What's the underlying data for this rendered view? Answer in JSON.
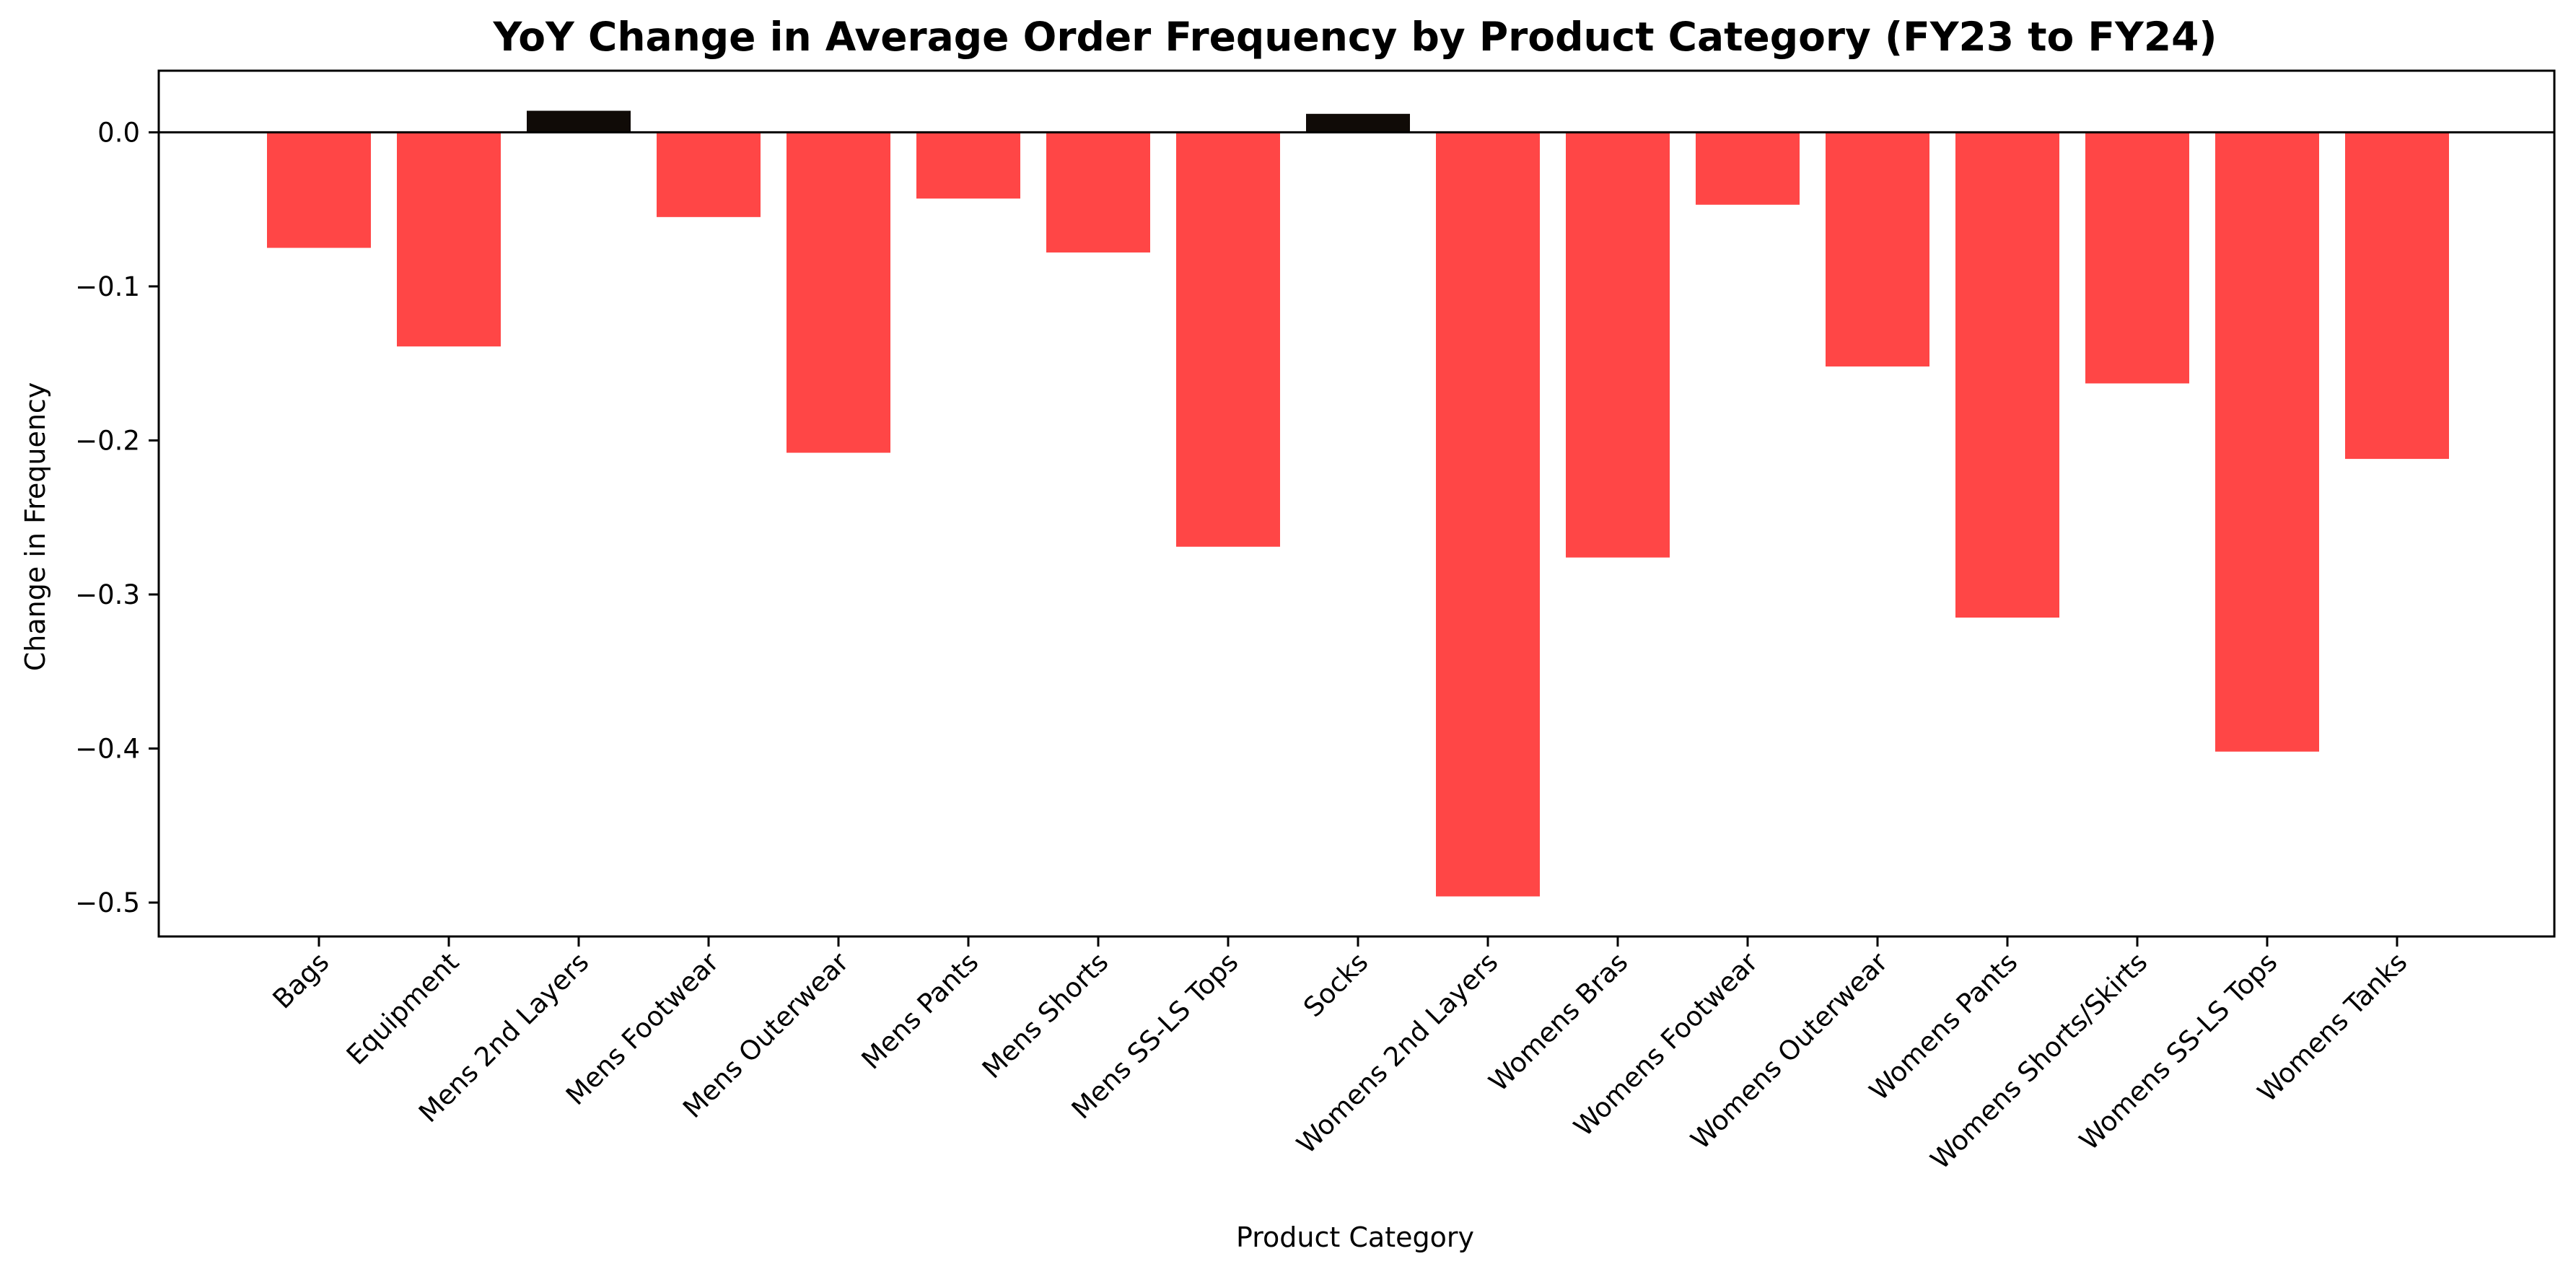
{
  "chart_data": {
    "type": "bar",
    "title": "YoY Change in Average Order Frequency by Product Category (FY23 to FY24)",
    "xlabel": "Product Category",
    "ylabel": "Change in Frequency",
    "categories": [
      "Bags",
      "Equipment",
      "Mens 2nd Layers",
      "Mens Footwear",
      "Mens Outerwear",
      "Mens Pants",
      "Mens Shorts",
      "Mens SS-LS Tops",
      "Socks",
      "Womens 2nd Layers",
      "Womens Bras",
      "Womens Footwear",
      "Womens Outerwear",
      "Womens Pants",
      "Womens Shorts/Skirts",
      "Womens SS-LS Tops",
      "Womens Tanks"
    ],
    "values": [
      -0.075,
      -0.139,
      0.014,
      -0.055,
      -0.208,
      -0.043,
      -0.078,
      -0.269,
      0.012,
      -0.496,
      -0.276,
      -0.047,
      -0.152,
      -0.315,
      -0.163,
      -0.402,
      -0.212
    ],
    "ylim": [
      -0.522,
      0.04
    ],
    "yticks": [
      "0.0",
      "−0.1",
      "−0.2",
      "−0.3",
      "−0.4",
      "−0.5"
    ],
    "ytick_values": [
      0.0,
      -0.1,
      -0.2,
      -0.3,
      -0.4,
      -0.5
    ],
    "colors": {
      "negative": "#ff4646",
      "positive": "#100b07",
      "axis": "#000000"
    },
    "grid": false,
    "legend": "none",
    "zero_line": true
  }
}
